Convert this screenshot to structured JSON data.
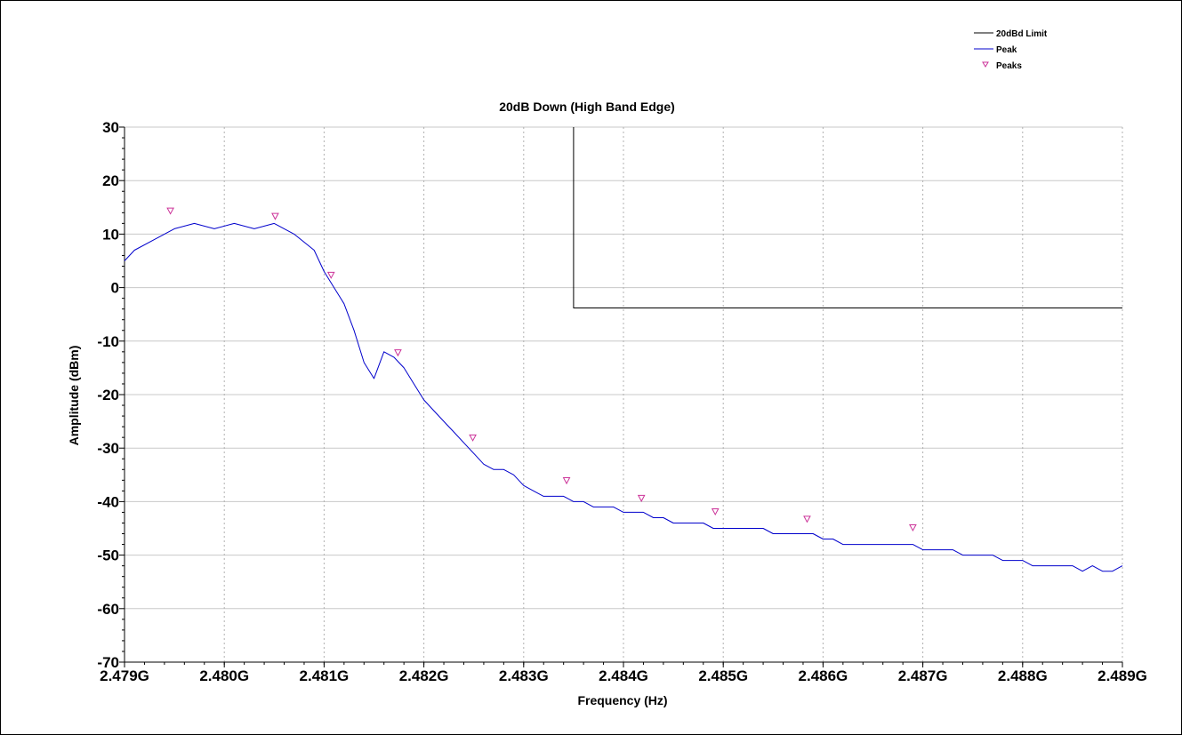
{
  "chart_data": {
    "type": "line",
    "title": "20dB Down (High Band Edge)",
    "xlabel": "Frequency (Hz)",
    "ylabel": "Amplitude (dBm)",
    "xlim": [
      2.479,
      2.489
    ],
    "ylim": [
      -70,
      30
    ],
    "x_unit_suffix": "G",
    "x_ticks": [
      "2.479G",
      "2.480G",
      "2.481G",
      "2.482G",
      "2.483G",
      "2.484G",
      "2.485G",
      "2.486G",
      "2.487G",
      "2.488G",
      "2.489G"
    ],
    "y_ticks": [
      "30",
      "20",
      "10",
      "0",
      "-10",
      "-20",
      "-30",
      "-40",
      "-50",
      "-60",
      "-70"
    ],
    "grid": true,
    "legend_position": "top-right",
    "legend": [
      {
        "label": "20dBd Limit",
        "color": "#000000",
        "kind": "line"
      },
      {
        "label": "Peak",
        "color": "#0000cc",
        "kind": "line"
      },
      {
        "label": "Peaks",
        "color": "#cc3399",
        "kind": "triangle"
      }
    ],
    "series": [
      {
        "name": "20dBd Limit",
        "color": "#000000",
        "points": [
          [
            2.4835,
            30
          ],
          [
            2.4835,
            -3.8
          ],
          [
            2.489,
            -3.8
          ]
        ]
      },
      {
        "name": "Peak",
        "color": "#0000cc",
        "points": [
          [
            2.479,
            5
          ],
          [
            2.4791,
            7
          ],
          [
            2.4793,
            9
          ],
          [
            2.4795,
            11
          ],
          [
            2.4797,
            12
          ],
          [
            2.4799,
            11
          ],
          [
            2.4801,
            12
          ],
          [
            2.4803,
            11
          ],
          [
            2.4805,
            12
          ],
          [
            2.4807,
            10
          ],
          [
            2.4809,
            7
          ],
          [
            2.481,
            3
          ],
          [
            2.4811,
            0
          ],
          [
            2.4812,
            -3
          ],
          [
            2.4813,
            -8
          ],
          [
            2.4814,
            -14
          ],
          [
            2.4815,
            -17
          ],
          [
            2.4816,
            -12
          ],
          [
            2.4817,
            -13
          ],
          [
            2.4818,
            -15
          ],
          [
            2.4819,
            -18
          ],
          [
            2.482,
            -21
          ],
          [
            2.4821,
            -23
          ],
          [
            2.4822,
            -25
          ],
          [
            2.4823,
            -27
          ],
          [
            2.4824,
            -29
          ],
          [
            2.4825,
            -31
          ],
          [
            2.4826,
            -33
          ],
          [
            2.4827,
            -34
          ],
          [
            2.4828,
            -34
          ],
          [
            2.4829,
            -35
          ],
          [
            2.483,
            -37
          ],
          [
            2.4831,
            -38
          ],
          [
            2.4832,
            -39
          ],
          [
            2.4833,
            -39
          ],
          [
            2.4834,
            -39
          ],
          [
            2.4835,
            -40
          ],
          [
            2.4836,
            -40
          ],
          [
            2.4837,
            -41
          ],
          [
            2.4838,
            -41
          ],
          [
            2.4839,
            -41
          ],
          [
            2.484,
            -42
          ],
          [
            2.4841,
            -42
          ],
          [
            2.4842,
            -42
          ],
          [
            2.4843,
            -43
          ],
          [
            2.4844,
            -43
          ],
          [
            2.4845,
            -44
          ],
          [
            2.4846,
            -44
          ],
          [
            2.4847,
            -44
          ],
          [
            2.4848,
            -44
          ],
          [
            2.4849,
            -45
          ],
          [
            2.485,
            -45
          ],
          [
            2.4851,
            -45
          ],
          [
            2.4852,
            -45
          ],
          [
            2.4853,
            -45
          ],
          [
            2.4854,
            -45
          ],
          [
            2.4855,
            -46
          ],
          [
            2.4856,
            -46
          ],
          [
            2.4857,
            -46
          ],
          [
            2.4858,
            -46
          ],
          [
            2.4859,
            -46
          ],
          [
            2.486,
            -47
          ],
          [
            2.4861,
            -47
          ],
          [
            2.4862,
            -48
          ],
          [
            2.4863,
            -48
          ],
          [
            2.4864,
            -48
          ],
          [
            2.4865,
            -48
          ],
          [
            2.4866,
            -48
          ],
          [
            2.4867,
            -48
          ],
          [
            2.4868,
            -48
          ],
          [
            2.4869,
            -48
          ],
          [
            2.487,
            -49
          ],
          [
            2.4871,
            -49
          ],
          [
            2.4872,
            -49
          ],
          [
            2.4873,
            -49
          ],
          [
            2.4874,
            -50
          ],
          [
            2.4875,
            -50
          ],
          [
            2.4876,
            -50
          ],
          [
            2.4877,
            -50
          ],
          [
            2.4878,
            -51
          ],
          [
            2.4879,
            -51
          ],
          [
            2.488,
            -51
          ],
          [
            2.4881,
            -52
          ],
          [
            2.4882,
            -52
          ],
          [
            2.4883,
            -52
          ],
          [
            2.4884,
            -52
          ],
          [
            2.4885,
            -52
          ],
          [
            2.4886,
            -53
          ],
          [
            2.4887,
            -52
          ],
          [
            2.4888,
            -53
          ],
          [
            2.4889,
            -53
          ],
          [
            2.489,
            -52
          ]
        ]
      },
      {
        "name": "Peaks",
        "color": "#cc3399",
        "marker": "triangle-down",
        "points": [
          [
            2.47946,
            14.2
          ],
          [
            2.48051,
            13.2
          ],
          [
            2.48107,
            2.2
          ],
          [
            2.48174,
            -12.3
          ],
          [
            2.48249,
            -28.2
          ],
          [
            2.48343,
            -36.2
          ],
          [
            2.48418,
            -39.5
          ],
          [
            2.48492,
            -42.0
          ],
          [
            2.48584,
            -43.4
          ],
          [
            2.4869,
            -45.0
          ]
        ]
      }
    ]
  }
}
